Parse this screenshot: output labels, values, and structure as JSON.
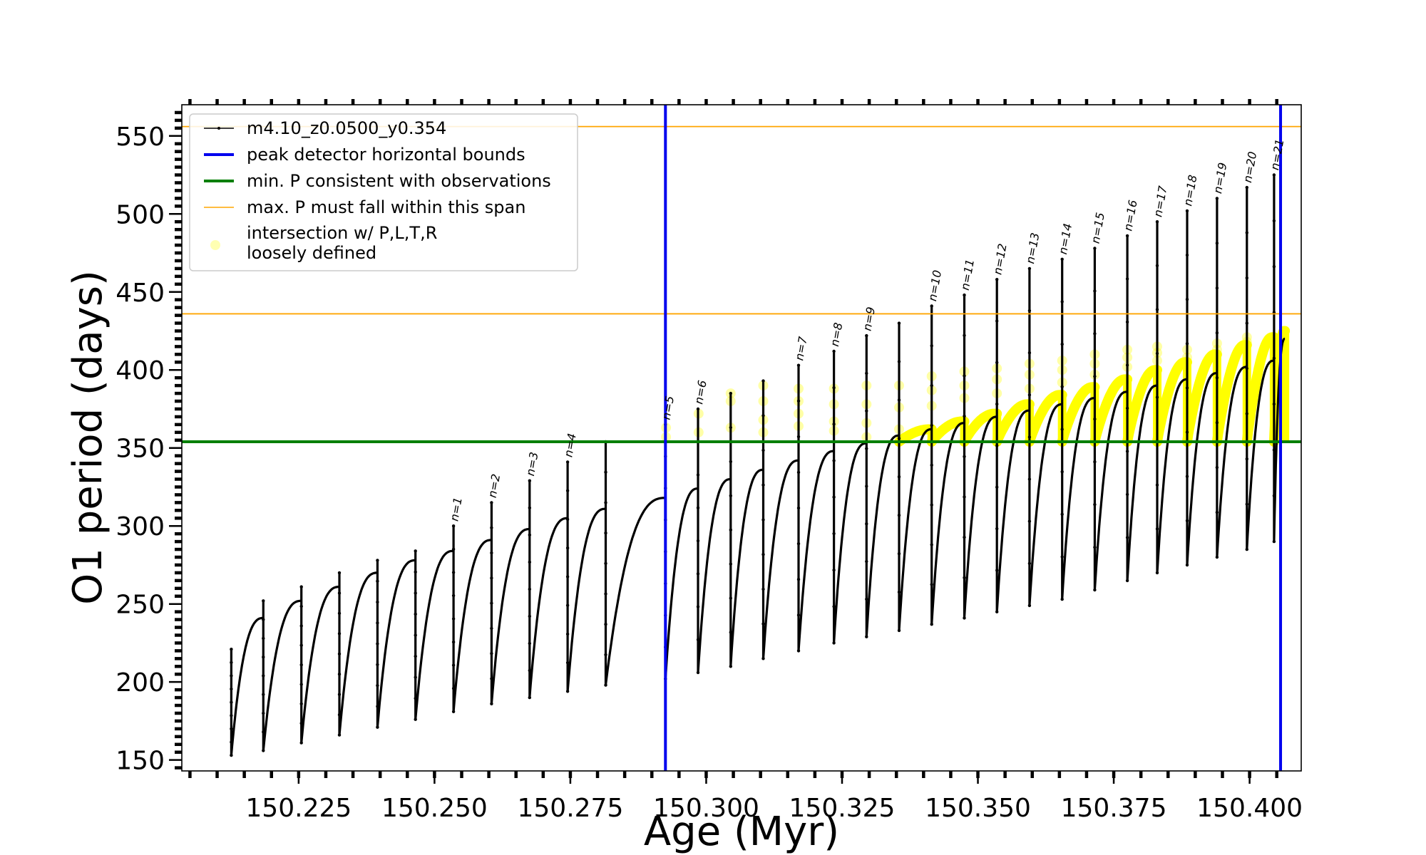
{
  "chart_data": {
    "type": "line",
    "title": "",
    "xlabel": "Age (Myr)",
    "ylabel": "O1 period (days)",
    "xlim": [
      150.2035,
      150.4095
    ],
    "ylim": [
      143,
      570
    ],
    "xticks": [
      150.225,
      150.25,
      150.275,
      150.3,
      150.325,
      150.35,
      150.375,
      150.4
    ],
    "xtick_labels": [
      "150.225",
      "150.250",
      "150.275",
      "150.300",
      "150.325",
      "150.350",
      "150.375",
      "150.400"
    ],
    "yticks": [
      150,
      200,
      250,
      300,
      350,
      400,
      450,
      500,
      550
    ],
    "ytick_labels": [
      "150",
      "200",
      "250",
      "300",
      "350",
      "400",
      "450",
      "500",
      "550"
    ],
    "grid": false,
    "legend_position": "upper-left",
    "legend": [
      {
        "label": "m4.10_z0.0500_y0.354",
        "style": "line-marker",
        "color": "#000000"
      },
      {
        "label": "peak detector horizontal bounds",
        "style": "line",
        "color": "#0000ee"
      },
      {
        "label": "min. P consistent with observations",
        "style": "line",
        "color": "#007f00"
      },
      {
        "label": "max. P must fall within this span",
        "style": "line-thin",
        "color": "#ffa500"
      },
      {
        "label": "intersection w/ P,L,T,R\nloosely defined",
        "style": "point",
        "color": "#ffff00"
      }
    ],
    "reference_lines": {
      "vertical_blue": [
        150.2925,
        150.4057
      ],
      "horizontal_green": 354,
      "horizontal_orange": [
        436,
        556
      ]
    },
    "series": [
      {
        "name": "m4.10_z0.0500_y0.354",
        "color": "#000000",
        "cycles": [
          {
            "start": 150.2126,
            "end": 150.2185,
            "low": 153,
            "high": 241,
            "tip": 221
          },
          {
            "start": 150.2185,
            "end": 150.2255,
            "low": 156,
            "high": 252,
            "tip": 252
          },
          {
            "start": 150.2255,
            "end": 150.2325,
            "low": 161,
            "high": 261,
            "tip": 261
          },
          {
            "start": 150.2325,
            "end": 150.2395,
            "low": 166,
            "high": 270,
            "tip": 270
          },
          {
            "start": 150.2395,
            "end": 150.2465,
            "low": 171,
            "high": 278,
            "tip": 278
          },
          {
            "start": 150.2465,
            "end": 150.2535,
            "low": 176,
            "high": 284,
            "tip": 284
          },
          {
            "start": 150.2535,
            "end": 150.2605,
            "low": 181,
            "high": 291,
            "tip": 300,
            "n": "n=1"
          },
          {
            "start": 150.2605,
            "end": 150.2675,
            "low": 186,
            "high": 298,
            "tip": 315,
            "n": "n=2"
          },
          {
            "start": 150.2675,
            "end": 150.2745,
            "low": 190,
            "high": 305,
            "tip": 329,
            "n": "n=3"
          },
          {
            "start": 150.2745,
            "end": 150.2815,
            "low": 194,
            "high": 311,
            "tip": 341,
            "n": "n=4"
          },
          {
            "start": 150.2815,
            "end": 150.2925,
            "low": 198,
            "high": 318,
            "tip": 354
          },
          {
            "start": 150.2925,
            "end": 150.2985,
            "low": 202,
            "high": 324,
            "tip": 365,
            "n": "n=5"
          },
          {
            "start": 150.2985,
            "end": 150.3045,
            "low": 206,
            "high": 330,
            "tip": 375,
            "n": "n=6"
          },
          {
            "start": 150.3045,
            "end": 150.3105,
            "low": 210,
            "high": 336,
            "tip": 385
          },
          {
            "start": 150.3105,
            "end": 150.317,
            "low": 215,
            "high": 342,
            "tip": 393
          },
          {
            "start": 150.317,
            "end": 150.3235,
            "low": 220,
            "high": 348,
            "tip": 403,
            "n": "n=7"
          },
          {
            "start": 150.3235,
            "end": 150.3295,
            "low": 225,
            "high": 353,
            "tip": 412,
            "n": "n=8"
          },
          {
            "start": 150.3295,
            "end": 150.3355,
            "low": 229,
            "high": 358,
            "tip": 422,
            "n": "n=9"
          },
          {
            "start": 150.3355,
            "end": 150.3415,
            "low": 233,
            "high": 362,
            "tip": 430
          },
          {
            "start": 150.3415,
            "end": 150.3475,
            "low": 237,
            "high": 366,
            "tip": 441,
            "n": "n=10"
          },
          {
            "start": 150.3475,
            "end": 150.3535,
            "low": 241,
            "high": 370,
            "tip": 448,
            "n": "n=11"
          },
          {
            "start": 150.3535,
            "end": 150.3595,
            "low": 245,
            "high": 374,
            "tip": 458,
            "n": "n=12"
          },
          {
            "start": 150.3595,
            "end": 150.3655,
            "low": 249,
            "high": 378,
            "tip": 465,
            "n": "n=13"
          },
          {
            "start": 150.3655,
            "end": 150.3715,
            "low": 253,
            "high": 382,
            "tip": 471,
            "n": "n=14"
          },
          {
            "start": 150.3715,
            "end": 150.3775,
            "low": 259,
            "high": 386,
            "tip": 478,
            "n": "n=15"
          },
          {
            "start": 150.3775,
            "end": 150.383,
            "low": 265,
            "high": 390,
            "tip": 486,
            "n": "n=16"
          },
          {
            "start": 150.383,
            "end": 150.3885,
            "low": 270,
            "high": 394,
            "tip": 495,
            "n": "n=17"
          },
          {
            "start": 150.3885,
            "end": 150.394,
            "low": 275,
            "high": 398,
            "tip": 502,
            "n": "n=18"
          },
          {
            "start": 150.394,
            "end": 150.3995,
            "low": 280,
            "high": 402,
            "tip": 510,
            "n": "n=19"
          },
          {
            "start": 150.3995,
            "end": 150.4045,
            "low": 285,
            "high": 406,
            "tip": 517,
            "n": "n=20"
          },
          {
            "start": 150.4045,
            "end": 150.4065,
            "low": 290,
            "high": 420,
            "tip": 525,
            "n": "n=21"
          }
        ]
      }
    ],
    "intersection_regions": [
      {
        "start": 150.3355,
        "end": 150.3415,
        "min": 354,
        "max": 362
      },
      {
        "start": 150.3415,
        "end": 150.3475,
        "min": 354,
        "max": 367
      },
      {
        "start": 150.3475,
        "end": 150.3535,
        "min": 354,
        "max": 372
      },
      {
        "start": 150.3535,
        "end": 150.3595,
        "min": 354,
        "max": 378
      },
      {
        "start": 150.3595,
        "end": 150.3655,
        "min": 354,
        "max": 384
      },
      {
        "start": 150.3655,
        "end": 150.3715,
        "min": 354,
        "max": 389
      },
      {
        "start": 150.3715,
        "end": 150.3775,
        "min": 354,
        "max": 394
      },
      {
        "start": 150.3775,
        "end": 150.383,
        "min": 354,
        "max": 400
      },
      {
        "start": 150.383,
        "end": 150.3885,
        "min": 354,
        "max": 405
      },
      {
        "start": 150.3885,
        "end": 150.394,
        "min": 354,
        "max": 410
      },
      {
        "start": 150.394,
        "end": 150.3995,
        "min": 354,
        "max": 416
      },
      {
        "start": 150.3995,
        "end": 150.4045,
        "min": 354,
        "max": 421
      },
      {
        "start": 150.4045,
        "end": 150.4065,
        "min": 354,
        "max": 425
      }
    ],
    "intersection_points": [
      {
        "x": 150.2926,
        "y": [
          357,
          363
        ]
      },
      {
        "x": 150.2986,
        "y": [
          360,
          372
        ]
      },
      {
        "x": 150.3045,
        "y": [
          363,
          380,
          385
        ]
      },
      {
        "x": 150.3105,
        "y": [
          360,
          368,
          380,
          390
        ]
      },
      {
        "x": 150.317,
        "y": [
          364,
          372,
          380,
          388
        ]
      },
      {
        "x": 150.3235,
        "y": [
          361,
          367,
          378,
          388
        ]
      },
      {
        "x": 150.3295,
        "y": [
          357,
          366,
          378,
          390
        ]
      },
      {
        "x": 150.3355,
        "y": [
          362,
          376,
          390
        ]
      },
      {
        "x": 150.3415,
        "y": [
          377,
          387,
          396
        ]
      },
      {
        "x": 150.3475,
        "y": [
          382,
          390,
          399
        ]
      },
      {
        "x": 150.3535,
        "y": [
          385,
          394,
          401
        ]
      },
      {
        "x": 150.3595,
        "y": [
          388,
          397,
          404
        ]
      },
      {
        "x": 150.3655,
        "y": [
          392,
          400,
          406
        ]
      },
      {
        "x": 150.3715,
        "y": [
          397,
          404,
          410
        ]
      },
      {
        "x": 150.3775,
        "y": [
          402,
          408,
          413
        ]
      },
      {
        "x": 150.383,
        "y": [
          406,
          411,
          415
        ]
      },
      {
        "x": 150.3885,
        "y": [
          408,
          413
        ]
      },
      {
        "x": 150.394,
        "y": [
          413,
          417
        ]
      },
      {
        "x": 150.3995,
        "y": [
          418,
          421
        ]
      }
    ]
  }
}
